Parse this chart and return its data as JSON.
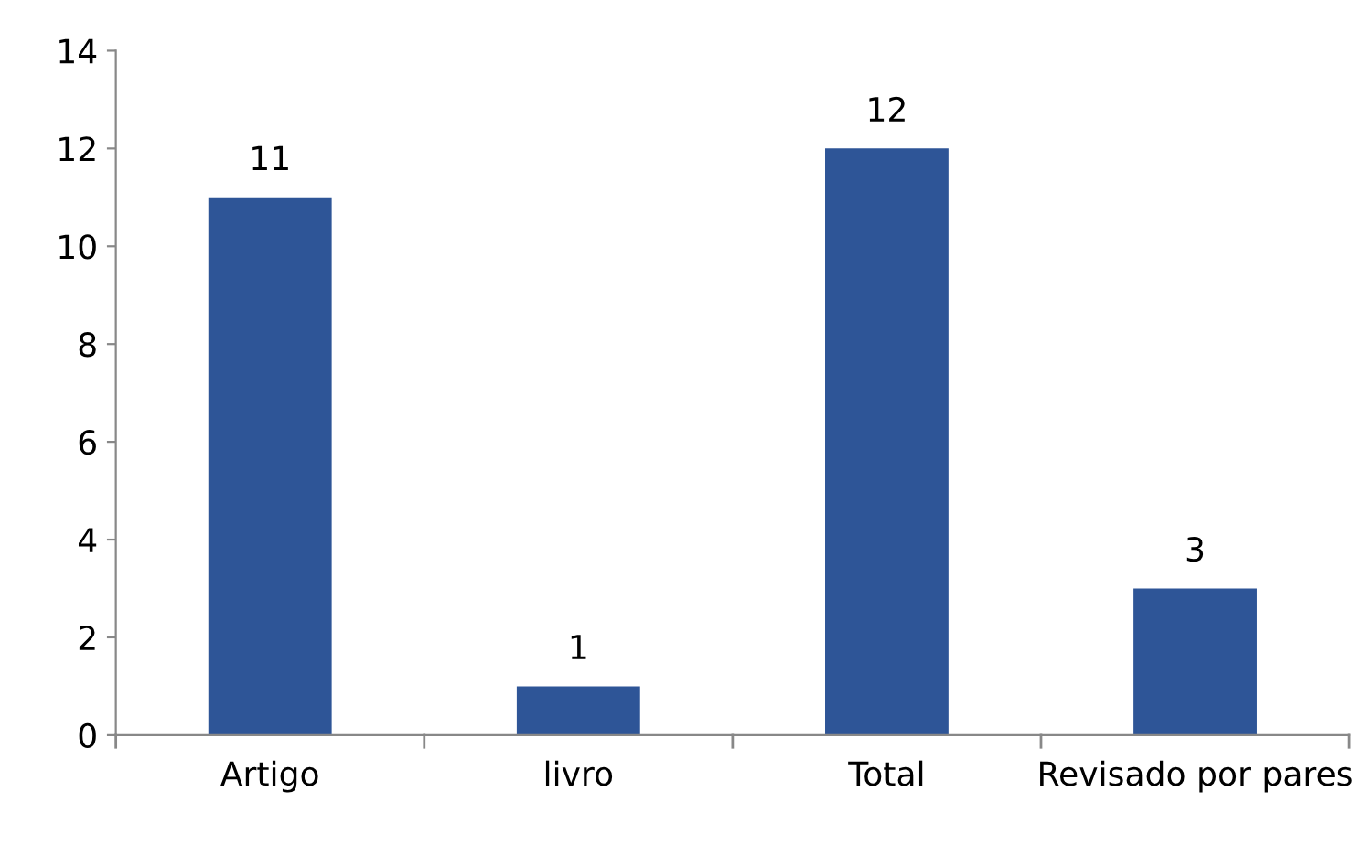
{
  "chart_data": {
    "type": "bar",
    "categories": [
      "Artigo",
      "livro",
      "Total",
      "Revisado por pares"
    ],
    "values": [
      11,
      1,
      12,
      3
    ],
    "color": "#2e5597",
    "ylim": [
      0,
      14
    ],
    "yticks": [
      0,
      2,
      4,
      6,
      8,
      10,
      12,
      14
    ],
    "grid": false,
    "data_labels": true,
    "legend": false
  }
}
